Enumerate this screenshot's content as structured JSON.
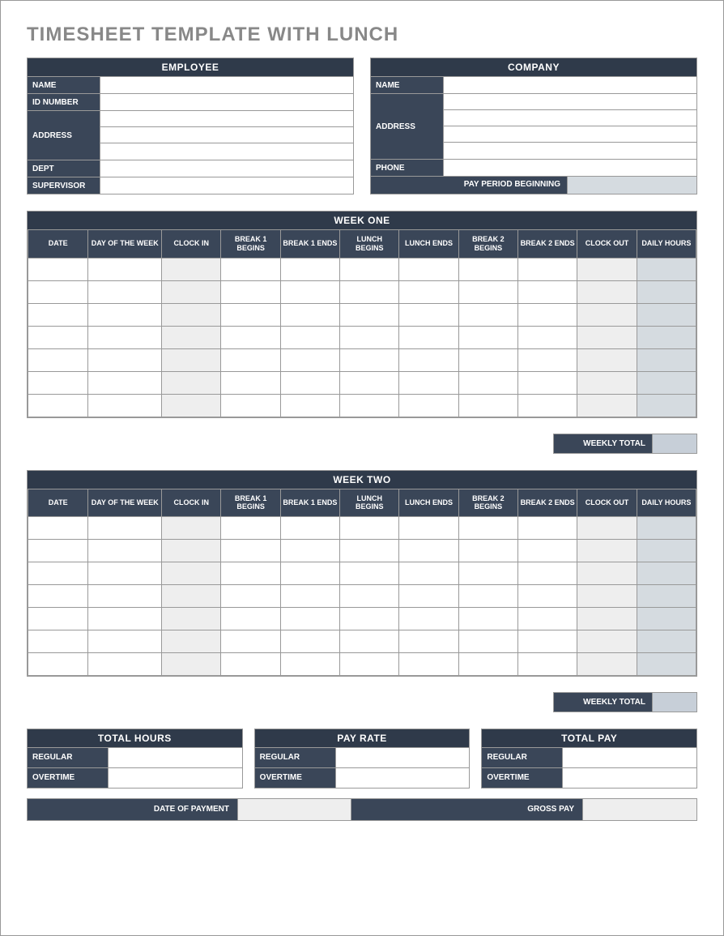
{
  "title": "TIMESHEET TEMPLATE WITH LUNCH",
  "colors": {
    "header_bg": "#2f3a4a",
    "label_bg": "#3a4658",
    "header_text": "#ffffff",
    "border": "#999999",
    "shaded_light": "#eeeeee",
    "shaded_calc": "#d5dbe0",
    "weekly_total_bg": "#c7cfd8",
    "title_color": "#888888",
    "page_bg": "#ffffff"
  },
  "typography": {
    "title_fontsize": 24,
    "header_fontsize": 12,
    "label_fontsize": 10,
    "table_header_fontsize": 9
  },
  "employee": {
    "header": "EMPLOYEE",
    "fields": {
      "name_label": "NAME",
      "name_value": "",
      "id_label": "ID NUMBER",
      "id_value": "",
      "address_label": "ADDRESS",
      "address_lines": [
        "",
        "",
        ""
      ],
      "dept_label": "DEPT",
      "dept_value": "",
      "supervisor_label": "SUPERVISOR",
      "supervisor_value": ""
    }
  },
  "company": {
    "header": "COMPANY",
    "fields": {
      "name_label": "NAME",
      "name_value": "",
      "address_label": "ADDRESS",
      "address_lines": [
        "",
        "",
        "",
        ""
      ],
      "phone_label": "PHONE",
      "phone_value": "",
      "pay_period_label": "PAY PERIOD BEGINNING",
      "pay_period_value": ""
    }
  },
  "timesheet_columns": [
    "DATE",
    "DAY OF THE WEEK",
    "CLOCK IN",
    "BREAK 1 BEGINS",
    "BREAK 1 ENDS",
    "LUNCH BEGINS",
    "LUNCH ENDS",
    "BREAK 2 BEGINS",
    "BREAK 2 ENDS",
    "CLOCK OUT",
    "DAILY HOURS"
  ],
  "column_shading": {
    "clock_in_col": 2,
    "clock_out_col": 9,
    "daily_hours_col": 10
  },
  "week_one": {
    "header": "WEEK ONE",
    "rows": 7,
    "weekly_total_label": "WEEKLY TOTAL",
    "weekly_total_value": ""
  },
  "week_two": {
    "header": "WEEK TWO",
    "rows": 7,
    "weekly_total_label": "WEEKLY TOTAL",
    "weekly_total_value": ""
  },
  "summary": {
    "total_hours": {
      "header": "TOTAL HOURS",
      "regular_label": "REGULAR",
      "regular_value": "",
      "overtime_label": "OVERTIME",
      "overtime_value": ""
    },
    "pay_rate": {
      "header": "PAY RATE",
      "regular_label": "REGULAR",
      "regular_value": "",
      "overtime_label": "OVERTIME",
      "overtime_value": ""
    },
    "total_pay": {
      "header": "TOTAL PAY",
      "regular_label": "REGULAR",
      "regular_value": "",
      "overtime_label": "OVERTIME",
      "overtime_value": ""
    }
  },
  "footer": {
    "date_of_payment_label": "DATE OF PAYMENT",
    "date_of_payment_value": "",
    "gross_pay_label": "GROSS PAY",
    "gross_pay_value": ""
  }
}
